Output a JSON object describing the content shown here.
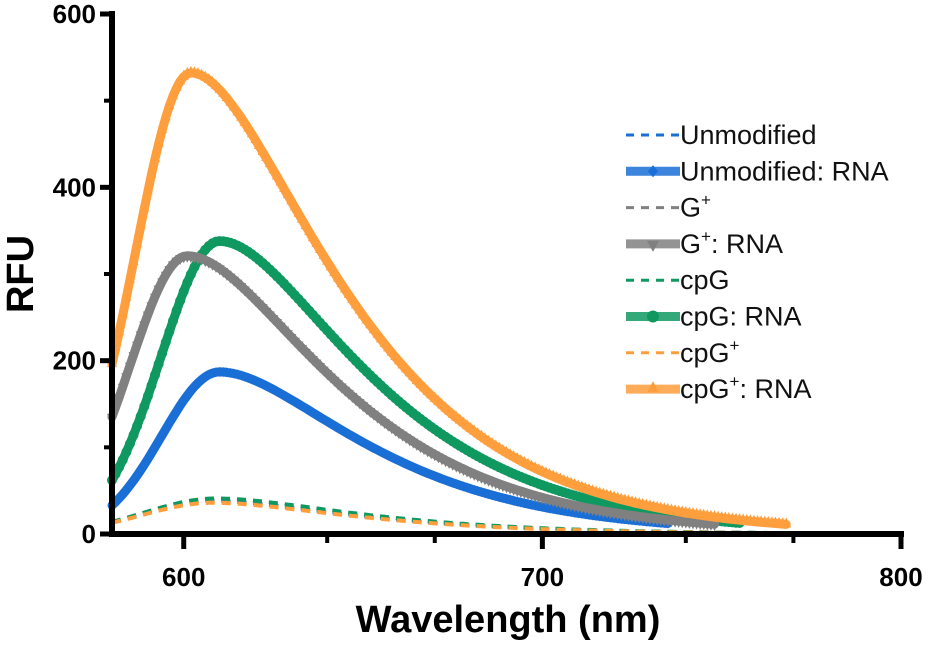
{
  "chart_data": {
    "type": "line",
    "title": "",
    "xlabel": "Wavelength (nm)",
    "ylabel": "RFU",
    "xlim": [
      580,
      800
    ],
    "ylim": [
      0,
      600
    ],
    "x_ticks": [
      600,
      700,
      800
    ],
    "x_minor_ticks": [
      640,
      670,
      740,
      770
    ],
    "y_ticks": [
      0,
      200,
      400,
      600
    ],
    "y_minor_ticks": [
      100,
      300,
      500
    ],
    "grid": false,
    "legend_position": "right",
    "series": [
      {
        "name": "Unmodified",
        "label_main": "Unmodified",
        "label_sup": "",
        "label_rest": "",
        "color": "#1a6fd6",
        "style": "dashed",
        "marker": "none",
        "x_start": 580,
        "x_end": 800,
        "start_value": 14,
        "peak_x": 608,
        "peak_value": 38
      },
      {
        "name": "Unmodified: RNA",
        "label_main": "Unmodified: RNA",
        "label_sup": "",
        "label_rest": "",
        "color": "#1a6fd6",
        "style": "solid",
        "marker": "diamond",
        "x_start": 580,
        "x_end": 735,
        "start_value": 33,
        "peak_x": 610,
        "peak_value": 187
      },
      {
        "name": "G+",
        "label_main": "G",
        "label_sup": "+",
        "label_rest": "",
        "color": "#808080",
        "style": "dashed",
        "marker": "none",
        "x_start": 580,
        "x_end": 800,
        "start_value": 14,
        "peak_x": 607,
        "peak_value": 39
      },
      {
        "name": "G+: RNA",
        "label_main": "G",
        "label_sup": "+",
        "label_rest": ": RNA",
        "color": "#808080",
        "style": "solid",
        "marker": "triangle-down",
        "x_start": 580,
        "x_end": 748,
        "start_value": 135,
        "peak_x": 601,
        "peak_value": 321
      },
      {
        "name": "cpG",
        "label_main": "cpG",
        "label_sup": "",
        "label_rest": "",
        "color": "#0f9960",
        "style": "dashed",
        "marker": "none",
        "x_start": 580,
        "x_end": 800,
        "start_value": 14,
        "peak_x": 609,
        "peak_value": 41
      },
      {
        "name": "cpG: RNA",
        "label_main": "cpG: RNA",
        "label_sup": "",
        "label_rest": "",
        "color": "#0f9960",
        "style": "solid",
        "marker": "circle",
        "x_start": 580,
        "x_end": 755,
        "start_value": 62,
        "peak_x": 610,
        "peak_value": 338
      },
      {
        "name": "cpG+",
        "label_main": "cpG",
        "label_sup": "+",
        "label_rest": "",
        "color": "#ff9e3d",
        "style": "dashed",
        "marker": "none",
        "x_start": 580,
        "x_end": 800,
        "start_value": 13,
        "peak_x": 608,
        "peak_value": 36
      },
      {
        "name": "cpG+: RNA",
        "label_main": "cpG",
        "label_sup": "+",
        "label_rest": ": RNA",
        "color": "#ff9e3d",
        "style": "solid",
        "marker": "triangle-up",
        "x_start": 580,
        "x_end": 768,
        "start_value": 196,
        "peak_x": 602,
        "peak_value": 532
      }
    ]
  }
}
